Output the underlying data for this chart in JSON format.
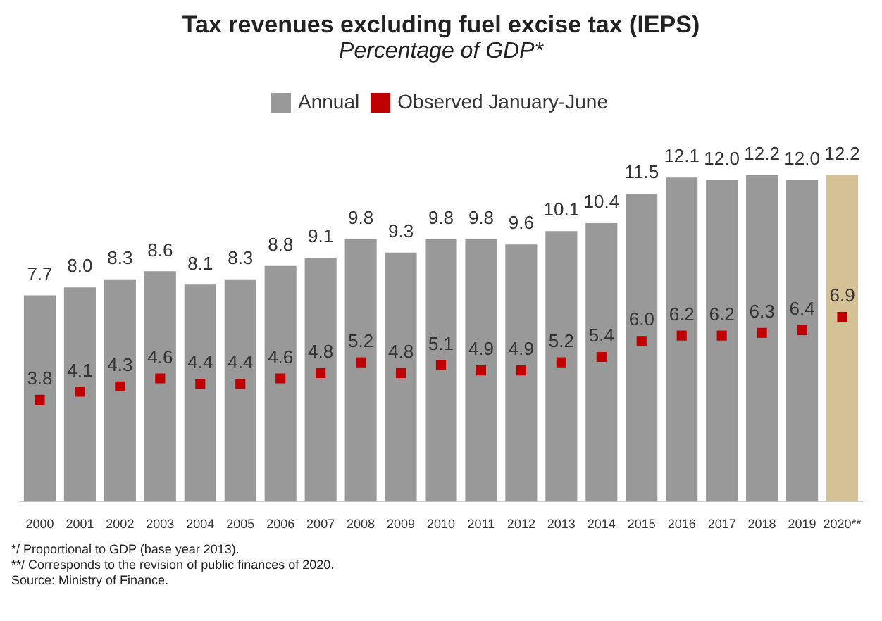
{
  "chart_data": {
    "type": "bar",
    "title": "Tax revenues excluding fuel excise tax (IEPS)",
    "subtitle": "Percentage of GDP*",
    "categories": [
      "2000",
      "2001",
      "2002",
      "2003",
      "2004",
      "2005",
      "2006",
      "2007",
      "2008",
      "2009",
      "2010",
      "2011",
      "2012",
      "2013",
      "2014",
      "2015",
      "2016",
      "2017",
      "2018",
      "2019",
      "2020**"
    ],
    "series": [
      {
        "name": "Annual",
        "color": "#999999",
        "colors": [
          "#999999",
          "#999999",
          "#999999",
          "#999999",
          "#999999",
          "#999999",
          "#999999",
          "#999999",
          "#999999",
          "#999999",
          "#999999",
          "#999999",
          "#999999",
          "#999999",
          "#999999",
          "#999999",
          "#999999",
          "#999999",
          "#999999",
          "#999999",
          "#d5c196"
        ],
        "values": [
          7.7,
          8.0,
          8.3,
          8.6,
          8.1,
          8.3,
          8.8,
          9.1,
          9.8,
          9.3,
          9.8,
          9.8,
          9.6,
          10.1,
          10.4,
          11.5,
          12.1,
          12.0,
          12.2,
          12.0,
          12.2
        ],
        "value_labels": [
          "7.7",
          "8.0",
          "8.3",
          "8.6",
          "8.1",
          "8.3",
          "8.8",
          "9.1",
          "9.8",
          "9.3",
          "9.8",
          "9.8",
          "9.6",
          "10.1",
          "10.4",
          "11.5",
          "12.1",
          "12.0",
          "12.2",
          "12.0",
          "12.2"
        ]
      },
      {
        "name": "Observed January-June",
        "type": "scatter",
        "color": "#c00000",
        "values": [
          3.8,
          4.1,
          4.3,
          4.6,
          4.4,
          4.4,
          4.6,
          4.8,
          5.2,
          4.8,
          5.1,
          4.9,
          4.9,
          5.2,
          5.4,
          6.0,
          6.2,
          6.2,
          6.3,
          6.4,
          6.9
        ],
        "value_labels": [
          "3.8",
          "4.1",
          "4.3",
          "4.6",
          "4.4",
          "4.4",
          "4.6",
          "4.8",
          "5.2",
          "4.8",
          "5.1",
          "4.9",
          "4.9",
          "5.2",
          "5.4",
          "6.0",
          "6.2",
          "6.2",
          "6.3",
          "6.4",
          "6.9"
        ]
      }
    ],
    "legend": "top",
    "tick_labels": "x",
    "grid": false,
    "annotations": [
      "*/  Proportional to GDP (base year 2013).",
      "**/ Corresponds to the revision of public finances of 2020.",
      "Source: Ministry of Finance."
    ]
  }
}
